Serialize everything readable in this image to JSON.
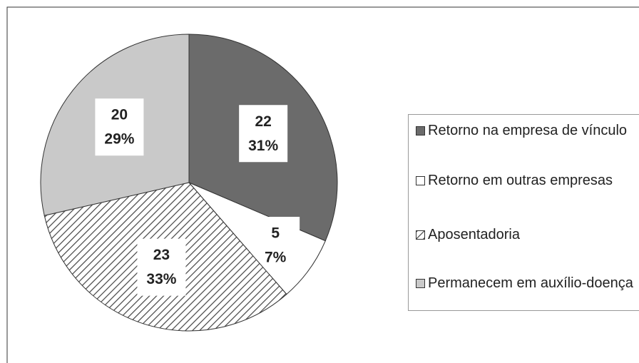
{
  "chart_data": {
    "type": "pie",
    "categories": [
      "Retorno na empresa de vínculo",
      "Retorno em outras empresas",
      "Aposentadoria",
      "Permanecem em auxílio-doença"
    ],
    "values": [
      22,
      5,
      23,
      20
    ],
    "percent_labels": [
      "31%",
      "7%",
      "33%",
      "29%"
    ],
    "fills": [
      "#6b6b6b",
      "#ffffff",
      "hatch",
      "#c9c9c9"
    ]
  }
}
